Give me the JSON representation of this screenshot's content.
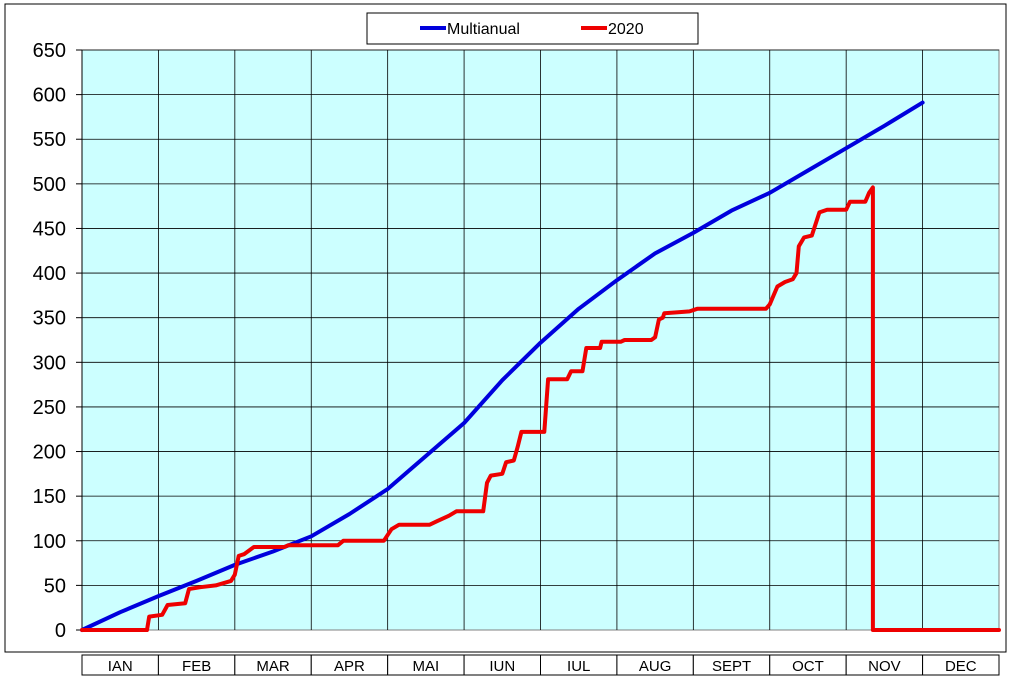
{
  "chart_data": {
    "type": "line",
    "ylim": [
      0,
      650
    ],
    "yticks": [
      0,
      50,
      100,
      150,
      200,
      250,
      300,
      350,
      400,
      450,
      500,
      550,
      600,
      650
    ],
    "grid": true,
    "legend_position": "top-center",
    "plot_background": "#ccffff",
    "categories": [
      "IAN",
      "FEB",
      "MAR",
      "APR",
      "MAI",
      "IUN",
      "IUL",
      "AUG",
      "SEPT",
      "OCT",
      "NOV",
      "DEC"
    ],
    "series": [
      {
        "name": "Multianual",
        "color": "#0000dd",
        "points": [
          [
            0,
            0
          ],
          [
            0.5,
            20
          ],
          [
            1,
            38
          ],
          [
            1.5,
            55
          ],
          [
            2,
            73
          ],
          [
            2.5,
            88
          ],
          [
            3,
            105
          ],
          [
            3.5,
            130
          ],
          [
            4,
            158
          ],
          [
            4.5,
            195
          ],
          [
            5,
            232
          ],
          [
            5.5,
            280
          ],
          [
            6,
            322
          ],
          [
            6.5,
            360
          ],
          [
            7,
            392
          ],
          [
            7.5,
            422
          ],
          [
            8,
            445
          ],
          [
            8.5,
            470
          ],
          [
            9,
            490
          ],
          [
            9.5,
            515
          ],
          [
            10,
            540
          ],
          [
            10.5,
            565
          ],
          [
            11,
            591
          ]
        ]
      },
      {
        "name": "2020",
        "color": "#ee0000",
        "points": [
          [
            0,
            0
          ],
          [
            0.85,
            0
          ],
          [
            0.88,
            15
          ],
          [
            1.05,
            17
          ],
          [
            1.12,
            28
          ],
          [
            1.35,
            30
          ],
          [
            1.4,
            46
          ],
          [
            1.55,
            48
          ],
          [
            1.75,
            50
          ],
          [
            1.95,
            55
          ],
          [
            2.0,
            62
          ],
          [
            2.05,
            83
          ],
          [
            2.12,
            85
          ],
          [
            2.25,
            93
          ],
          [
            2.65,
            93
          ],
          [
            2.7,
            95
          ],
          [
            3.35,
            95
          ],
          [
            3.42,
            100
          ],
          [
            3.95,
            100
          ],
          [
            4.05,
            113
          ],
          [
            4.15,
            118
          ],
          [
            4.55,
            118
          ],
          [
            4.65,
            122
          ],
          [
            4.8,
            128
          ],
          [
            4.9,
            133
          ],
          [
            5.25,
            133
          ],
          [
            5.3,
            165
          ],
          [
            5.35,
            173
          ],
          [
            5.5,
            175
          ],
          [
            5.55,
            188
          ],
          [
            5.65,
            190
          ],
          [
            5.7,
            205
          ],
          [
            5.75,
            222
          ],
          [
            6.05,
            222
          ],
          [
            6.1,
            281
          ],
          [
            6.35,
            281
          ],
          [
            6.4,
            290
          ],
          [
            6.55,
            290
          ],
          [
            6.6,
            316
          ],
          [
            6.78,
            316
          ],
          [
            6.8,
            323
          ],
          [
            7.05,
            323
          ],
          [
            7.1,
            325
          ],
          [
            7.45,
            325
          ],
          [
            7.5,
            328
          ],
          [
            7.55,
            348
          ],
          [
            7.6,
            350
          ],
          [
            7.62,
            355
          ],
          [
            7.8,
            356
          ],
          [
            7.95,
            357
          ],
          [
            8.05,
            360
          ],
          [
            8.95,
            360
          ],
          [
            9.0,
            365
          ],
          [
            9.05,
            375
          ],
          [
            9.1,
            385
          ],
          [
            9.2,
            390
          ],
          [
            9.3,
            393
          ],
          [
            9.35,
            400
          ],
          [
            9.38,
            430
          ],
          [
            9.45,
            440
          ],
          [
            9.55,
            442
          ],
          [
            9.65,
            468
          ],
          [
            9.75,
            471
          ],
          [
            10.0,
            471
          ],
          [
            10.05,
            480
          ],
          [
            10.25,
            480
          ],
          [
            10.3,
            490
          ],
          [
            10.35,
            496
          ],
          [
            10.35,
            0
          ],
          [
            12,
            0
          ]
        ]
      }
    ]
  }
}
